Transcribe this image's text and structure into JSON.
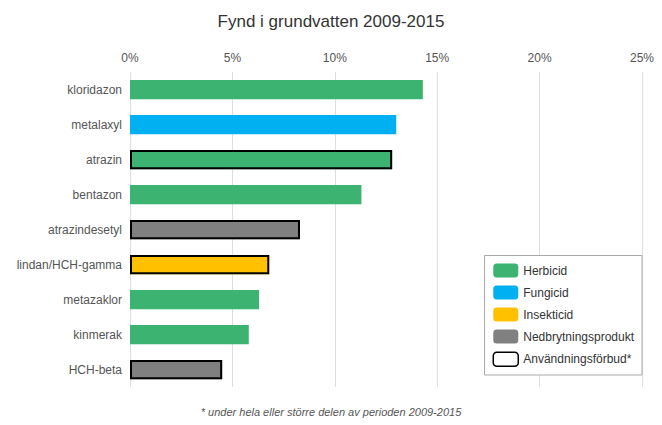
{
  "chart_data": {
    "type": "bar",
    "orientation": "horizontal",
    "title": "Fynd i grundvatten 2009-2015",
    "categories": [
      "HCH-beta",
      "kinmerak",
      "metazaklor",
      "lindan/HCH-gamma",
      "atrazindesetyl",
      "bentazon",
      "atrazin",
      "metalaxyl",
      "kloridazon"
    ],
    "series": [
      {
        "name": "Herbicid",
        "color": "#3cb371",
        "values": [
          null,
          5.8,
          6.3,
          null,
          null,
          11.3,
          12.8,
          null,
          14.3
        ]
      },
      {
        "name": "Fungicid",
        "color": "#00b0f0",
        "values": [
          null,
          null,
          null,
          null,
          null,
          null,
          null,
          13.0,
          null
        ]
      },
      {
        "name": "Insekticid",
        "color": "#ffc000",
        "values": [
          null,
          null,
          null,
          6.8,
          null,
          null,
          null,
          null,
          null
        ]
      },
      {
        "name": "Nedbrytningsprodukt",
        "color": "#808080",
        "values": [
          4.5,
          null,
          null,
          null,
          8.3,
          null,
          null,
          null,
          null
        ]
      },
      {
        "name": "Användningsförbud*",
        "color": "#ffffff",
        "type": "outline",
        "values": [
          4.5,
          null,
          null,
          6.8,
          8.3,
          null,
          12.8,
          null,
          null
        ]
      }
    ],
    "xlim": [
      0,
      25
    ],
    "xticks": [
      {
        "value": 0,
        "label": "0%"
      },
      {
        "value": 5,
        "label": "5%"
      },
      {
        "value": 10,
        "label": "10%"
      },
      {
        "value": 15,
        "label": "15%"
      },
      {
        "value": 20,
        "label": "20%"
      },
      {
        "value": 25,
        "label": "25%"
      }
    ],
    "grid": true,
    "legend": "right",
    "annotations": [
      "* under hela eller större delen av perioden 2009-2015"
    ]
  }
}
